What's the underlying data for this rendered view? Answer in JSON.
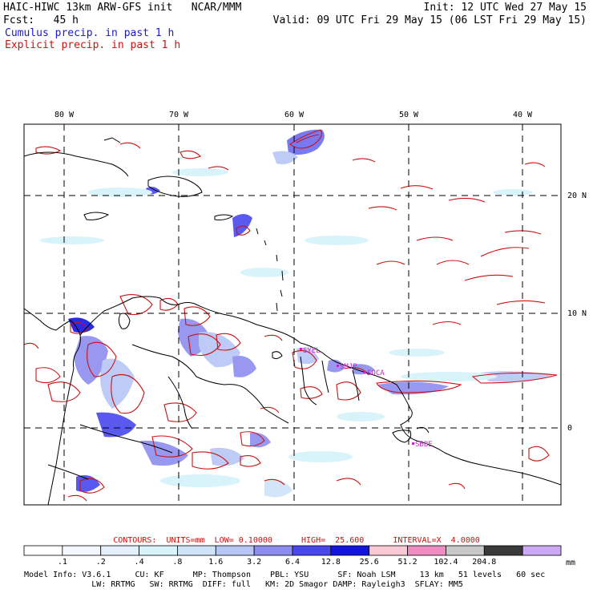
{
  "header": {
    "title": "HAIC-HIWC 13km ARW-GFS init   NCAR/MMM",
    "init": "Init: 12 UTC Wed 27 May 15",
    "forecast": "Fcst:   45 h",
    "valid": "Valid: 09 UTC Fri 29 May 15 (06 LST Fri 29 May 15)",
    "cumulus_label": "Cumulus precip. in past 1 h",
    "explicit_label": "Explicit precip. in past 1 h"
  },
  "map": {
    "lon_labels": [
      "80 W",
      "70 W",
      "60 W",
      "50 W",
      "40 W"
    ],
    "lat_labels": [
      "20 N",
      "10 N",
      "0"
    ],
    "stations": [
      "SYEL",
      "SMJP",
      "SOCA",
      "SBBE"
    ]
  },
  "colors": {
    "cumulus": "#1a1acc",
    "explicit": "#cc1111",
    "coast": "#000000"
  },
  "contours": {
    "text": "CONTOURS:  UNITS=mm  LOW= 0.10000      HIGH=  25.600      INTERVAL=X  4.0000"
  },
  "colorbar": {
    "units": "mm",
    "ticks": [
      ".1",
      ".2",
      ".4",
      ".8",
      "1.6",
      "3.2",
      "6.4",
      "12.8",
      "25.6",
      "51.2",
      "102.4",
      "204.8"
    ],
    "colors": [
      "#ffffff",
      "#f4f8fe",
      "#e6f0fd",
      "#d9f3fa",
      "#cfe3f9",
      "#b8c6f6",
      "#8d8df0",
      "#4848ee",
      "#1414e0",
      "#fbc9d6",
      "#f08cc2",
      "#c8c8c8",
      "#3a3a3a",
      "#cca8f5"
    ]
  },
  "model_info": {
    "line1": "Model Info: V3.6.1     CU: KF      MP: Thompson    PBL: YSU      SF: Noah LSM     13 km   51 levels   60 sec",
    "line2": "              LW: RRTMG   SW: RRTMG  DIFF: full   KM: 2D Smagor DAMP: Rayleigh3  SFLAY: MM5"
  }
}
